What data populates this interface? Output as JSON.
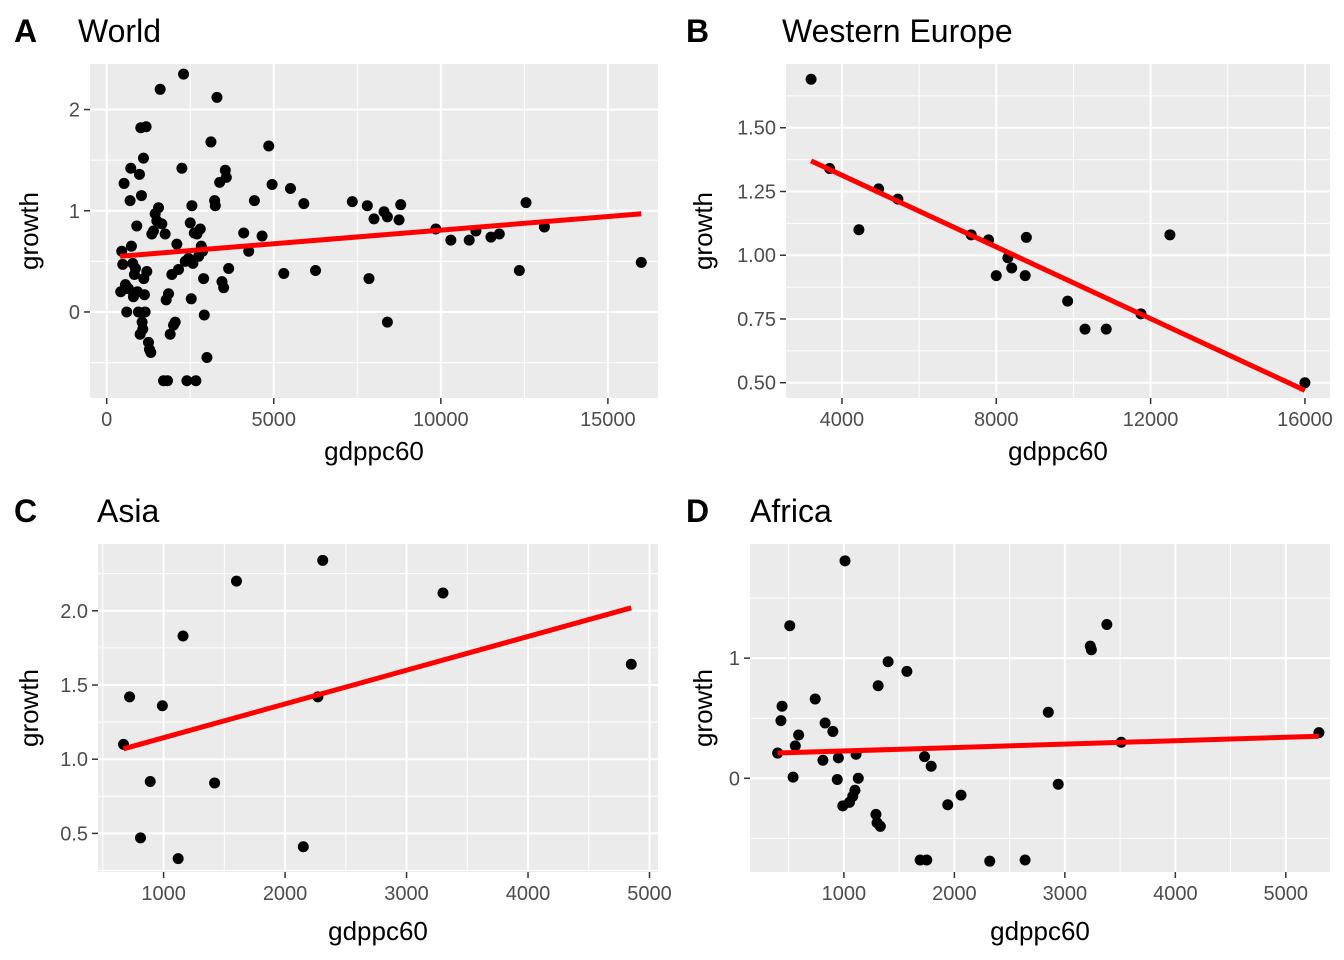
{
  "chart_data": [
    {
      "type": "scatter",
      "panel_letter": "A",
      "title": "World",
      "xlabel": "gdppc60",
      "ylabel": "growth",
      "xlim": [
        -500,
        16500
      ],
      "ylim": [
        -0.85,
        2.45
      ],
      "xticks": [
        0,
        5000,
        10000,
        15000
      ],
      "xtick_labels": [
        "0",
        "5000",
        "10000",
        "15000"
      ],
      "yticks": [
        0,
        1,
        2
      ],
      "ytick_labels": [
        "0",
        "1",
        "2"
      ],
      "grid": true,
      "points": [
        [
          420,
          0.2
        ],
        [
          450,
          0.6
        ],
        [
          480,
          0.47
        ],
        [
          520,
          1.27
        ],
        [
          560,
          0.27
        ],
        [
          600,
          0.0
        ],
        [
          650,
          0.23
        ],
        [
          700,
          1.1
        ],
        [
          720,
          1.42
        ],
        [
          740,
          0.65
        ],
        [
          780,
          0.48
        ],
        [
          800,
          0.15
        ],
        [
          830,
          0.37
        ],
        [
          860,
          0.43
        ],
        [
          900,
          0.85
        ],
        [
          920,
          0.2
        ],
        [
          950,
          0.0
        ],
        [
          980,
          1.36
        ],
        [
          1000,
          -0.22
        ],
        [
          1020,
          1.82
        ],
        [
          1040,
          1.15
        ],
        [
          1060,
          -0.1
        ],
        [
          1080,
          -0.17
        ],
        [
          1100,
          1.52
        ],
        [
          1110,
          0.33
        ],
        [
          1130,
          0.17
        ],
        [
          1150,
          0.0
        ],
        [
          1180,
          1.83
        ],
        [
          1200,
          0.4
        ],
        [
          1250,
          -0.3
        ],
        [
          1280,
          -0.37
        ],
        [
          1320,
          -0.4
        ],
        [
          1350,
          0.77
        ],
        [
          1400,
          0.8
        ],
        [
          1450,
          0.97
        ],
        [
          1500,
          0.9
        ],
        [
          1550,
          1.03
        ],
        [
          1600,
          2.2
        ],
        [
          1650,
          0.87
        ],
        [
          1700,
          -0.68
        ],
        [
          1750,
          0.77
        ],
        [
          1780,
          0.12
        ],
        [
          1820,
          -0.68
        ],
        [
          1850,
          0.18
        ],
        [
          1900,
          -0.22
        ],
        [
          1950,
          0.37
        ],
        [
          2000,
          -0.13
        ],
        [
          2050,
          -0.1
        ],
        [
          2100,
          0.67
        ],
        [
          2150,
          0.42
        ],
        [
          2250,
          1.42
        ],
        [
          2300,
          2.35
        ],
        [
          2350,
          0.5
        ],
        [
          2400,
          -0.68
        ],
        [
          2450,
          0.53
        ],
        [
          2500,
          0.88
        ],
        [
          2530,
          0.13
        ],
        [
          2550,
          1.05
        ],
        [
          2580,
          0.48
        ],
        [
          2620,
          0.78
        ],
        [
          2670,
          -0.68
        ],
        [
          2700,
          0.77
        ],
        [
          2750,
          0.55
        ],
        [
          2800,
          0.82
        ],
        [
          2830,
          0.65
        ],
        [
          2870,
          0.6
        ],
        [
          2900,
          0.33
        ],
        [
          2920,
          -0.03
        ],
        [
          3000,
          -0.45
        ],
        [
          3120,
          1.68
        ],
        [
          3230,
          1.1
        ],
        [
          3250,
          1.05
        ],
        [
          3300,
          2.12
        ],
        [
          3380,
          1.28
        ],
        [
          3450,
          0.3
        ],
        [
          3500,
          0.24
        ],
        [
          3550,
          1.4
        ],
        [
          3580,
          1.33
        ],
        [
          3650,
          0.43
        ],
        [
          4100,
          0.78
        ],
        [
          4250,
          0.6
        ],
        [
          4420,
          1.1
        ],
        [
          4650,
          0.75
        ],
        [
          4850,
          1.64
        ],
        [
          4950,
          1.26
        ],
        [
          5300,
          0.38
        ],
        [
          5500,
          1.22
        ],
        [
          5900,
          1.07
        ],
        [
          6250,
          0.41
        ],
        [
          7350,
          1.09
        ],
        [
          7800,
          1.05
        ],
        [
          7850,
          0.33
        ],
        [
          8000,
          0.92
        ],
        [
          8300,
          0.99
        ],
        [
          8400,
          0.94
        ],
        [
          8400,
          -0.1
        ],
        [
          8750,
          0.91
        ],
        [
          8800,
          1.06
        ],
        [
          9850,
          0.82
        ],
        [
          10300,
          0.71
        ],
        [
          10850,
          0.71
        ],
        [
          11050,
          0.8
        ],
        [
          11500,
          0.74
        ],
        [
          11750,
          0.77
        ],
        [
          12350,
          0.41
        ],
        [
          12550,
          1.08
        ],
        [
          13100,
          0.84
        ],
        [
          16000,
          0.49
        ]
      ],
      "fit_line": [
        [
          400,
          0.55
        ],
        [
          16000,
          0.97
        ]
      ],
      "fit_color": "#ff0000"
    },
    {
      "type": "scatter",
      "panel_letter": "B",
      "title": "Western Europe",
      "xlabel": "gdppc60",
      "ylabel": "growth",
      "xlim": [
        2550,
        16650
      ],
      "ylim": [
        0.44,
        1.75
      ],
      "xticks": [
        4000,
        8000,
        12000,
        16000
      ],
      "xtick_labels": [
        "4000",
        "8000",
        "12000",
        "16000"
      ],
      "yticks": [
        0.5,
        0.75,
        1.0,
        1.25,
        1.5
      ],
      "ytick_labels": [
        "0.50",
        "0.75",
        "1.00",
        "1.25",
        "1.50"
      ],
      "grid": true,
      "points": [
        [
          3200,
          1.69
        ],
        [
          3680,
          1.34
        ],
        [
          4440,
          1.1
        ],
        [
          4950,
          1.26
        ],
        [
          5450,
          1.22
        ],
        [
          7350,
          1.08
        ],
        [
          7800,
          1.06
        ],
        [
          8000,
          0.92
        ],
        [
          8300,
          0.99
        ],
        [
          8400,
          0.95
        ],
        [
          8750,
          0.92
        ],
        [
          8780,
          1.07
        ],
        [
          9850,
          0.82
        ],
        [
          10300,
          0.71
        ],
        [
          10850,
          0.71
        ],
        [
          11750,
          0.77
        ],
        [
          12500,
          1.08
        ],
        [
          16000,
          0.5
        ]
      ],
      "fit_line": [
        [
          3200,
          1.37
        ],
        [
          16000,
          0.47
        ]
      ],
      "fit_color": "#ff0000"
    },
    {
      "type": "scatter",
      "panel_letter": "C",
      "title": "Asia",
      "xlabel": "gdppc60",
      "ylabel": "growth",
      "xlim": [
        460,
        5070
      ],
      "ylim": [
        0.24,
        2.45
      ],
      "xticks": [
        1000,
        2000,
        3000,
        4000,
        5000
      ],
      "xtick_labels": [
        "1000",
        "2000",
        "3000",
        "4000",
        "5000"
      ],
      "yticks": [
        0.5,
        1.0,
        1.5,
        2.0
      ],
      "ytick_labels": [
        "0.5",
        "1.0",
        "1.5",
        "2.0"
      ],
      "grid": true,
      "points": [
        [
          670,
          1.1
        ],
        [
          720,
          1.42
        ],
        [
          810,
          0.47
        ],
        [
          890,
          0.85
        ],
        [
          990,
          1.36
        ],
        [
          1120,
          0.33
        ],
        [
          1160,
          1.83
        ],
        [
          1420,
          0.84
        ],
        [
          1600,
          2.2
        ],
        [
          2150,
          0.41
        ],
        [
          2270,
          1.42
        ],
        [
          2310,
          2.34
        ],
        [
          3300,
          2.12
        ],
        [
          4850,
          1.64
        ]
      ],
      "fit_line": [
        [
          670,
          1.07
        ],
        [
          4850,
          2.02
        ]
      ],
      "fit_color": "#ff0000"
    },
    {
      "type": "scatter",
      "panel_letter": "D",
      "title": "Africa",
      "xlabel": "gdppc60",
      "ylabel": "growth",
      "xlim": [
        150,
        5400
      ],
      "ylim": [
        -0.78,
        1.95
      ],
      "xticks": [
        1000,
        2000,
        3000,
        4000,
        5000
      ],
      "xtick_labels": [
        "1000",
        "2000",
        "3000",
        "4000",
        "5000"
      ],
      "yticks": [
        0,
        1
      ],
      "ytick_labels": [
        "0",
        "1"
      ],
      "grid": true,
      "points": [
        [
          400,
          0.21
        ],
        [
          430,
          0.48
        ],
        [
          440,
          0.6
        ],
        [
          510,
          1.27
        ],
        [
          540,
          0.01
        ],
        [
          560,
          0.27
        ],
        [
          590,
          0.36
        ],
        [
          740,
          0.66
        ],
        [
          810,
          0.15
        ],
        [
          830,
          0.46
        ],
        [
          900,
          0.39
        ],
        [
          940,
          -0.01
        ],
        [
          950,
          0.17
        ],
        [
          990,
          -0.23
        ],
        [
          1010,
          1.81
        ],
        [
          1050,
          -0.2
        ],
        [
          1080,
          -0.15
        ],
        [
          1100,
          -0.1
        ],
        [
          1110,
          0.2
        ],
        [
          1130,
          0.0
        ],
        [
          1290,
          -0.3
        ],
        [
          1300,
          -0.37
        ],
        [
          1310,
          0.77
        ],
        [
          1330,
          -0.4
        ],
        [
          1400,
          0.97
        ],
        [
          1570,
          0.89
        ],
        [
          1690,
          -0.68
        ],
        [
          1730,
          0.18
        ],
        [
          1750,
          -0.68
        ],
        [
          1790,
          0.1
        ],
        [
          1940,
          -0.22
        ],
        [
          2060,
          -0.14
        ],
        [
          2320,
          -0.69
        ],
        [
          2640,
          -0.68
        ],
        [
          2850,
          0.55
        ],
        [
          2940,
          -0.05
        ],
        [
          3230,
          1.1
        ],
        [
          3240,
          1.07
        ],
        [
          3380,
          1.28
        ],
        [
          3510,
          0.3
        ],
        [
          5300,
          0.38
        ]
      ],
      "fit_line": [
        [
          400,
          0.21
        ],
        [
          5300,
          0.35
        ]
      ],
      "fit_color": "#ff0000"
    }
  ]
}
